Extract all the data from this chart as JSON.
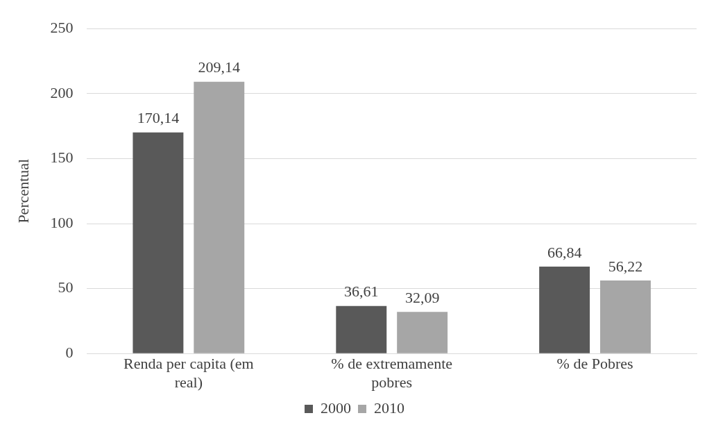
{
  "chart_data": {
    "type": "bar",
    "ylabel": "Percentual",
    "categories": [
      "Renda per capita (em real)",
      "% de extremamente pobres",
      "% de Pobres"
    ],
    "series": [
      {
        "name": "2000",
        "color": "#595959",
        "values": [
          170.14,
          36.61,
          66.84
        ],
        "value_labels": [
          "170,14",
          "36,61",
          "66,84"
        ]
      },
      {
        "name": "2010",
        "color": "#a6a6a6",
        "values": [
          209.14,
          32.09,
          56.22
        ],
        "value_labels": [
          "209,14",
          "32,09",
          "56,22"
        ]
      }
    ],
    "ylim": [
      0,
      250
    ],
    "yticks": [
      0,
      50,
      100,
      150,
      200,
      250
    ],
    "grid": "y",
    "legend": "bottom"
  }
}
